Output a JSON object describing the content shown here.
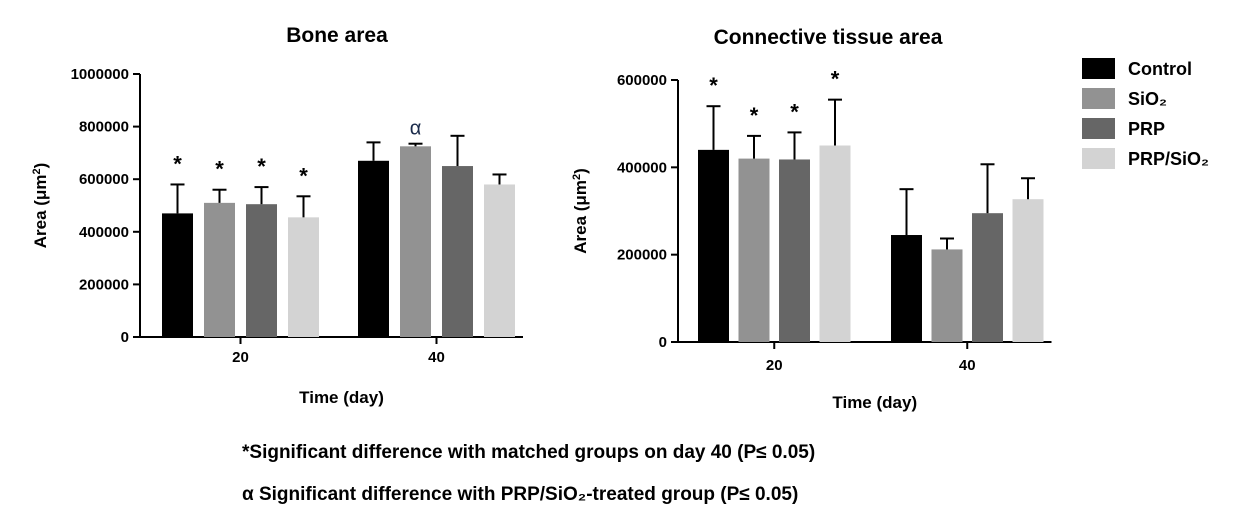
{
  "chart_data": [
    {
      "type": "bar",
      "title": "Bone area",
      "xlabel": "Time (day)",
      "ylabel": "Area (μm²)",
      "ylim": [
        0,
        1000000
      ],
      "yticks": [
        0,
        200000,
        400000,
        600000,
        800000,
        1000000
      ],
      "categories": [
        "20",
        "40"
      ],
      "series": [
        {
          "name": "Control",
          "values": [
            470000,
            670000
          ],
          "errors": [
            110000,
            70000
          ]
        },
        {
          "name": "SiO₂",
          "values": [
            510000,
            725000
          ],
          "errors": [
            50000,
            10000
          ]
        },
        {
          "name": "PRP",
          "values": [
            505000,
            650000
          ],
          "errors": [
            65000,
            115000
          ]
        },
        {
          "name": "PRP/SiO₂",
          "values": [
            455000,
            580000
          ],
          "errors": [
            80000,
            38000
          ]
        }
      ],
      "annotations": [
        {
          "category": "20",
          "series": "Control",
          "symbol": "*"
        },
        {
          "category": "20",
          "series": "SiO₂",
          "symbol": "*"
        },
        {
          "category": "20",
          "series": "PRP",
          "symbol": "*"
        },
        {
          "category": "20",
          "series": "PRP/SiO₂",
          "symbol": "*"
        },
        {
          "category": "40",
          "series": "SiO₂",
          "symbol": "α"
        }
      ]
    },
    {
      "type": "bar",
      "title": "Connective tissue area",
      "xlabel": "Time (day)",
      "ylabel": "Area (μm²)",
      "ylim": [
        0,
        600000
      ],
      "yticks": [
        0,
        200000,
        400000,
        600000
      ],
      "categories": [
        "20",
        "40"
      ],
      "series": [
        {
          "name": "Control",
          "values": [
            440000,
            245000
          ],
          "errors": [
            100000,
            105000
          ]
        },
        {
          "name": "SiO₂",
          "values": [
            420000,
            212000
          ],
          "errors": [
            52000,
            25000
          ]
        },
        {
          "name": "PRP",
          "values": [
            418000,
            295000
          ],
          "errors": [
            62000,
            112000
          ]
        },
        {
          "name": "PRP/SiO₂",
          "values": [
            450000,
            327000
          ],
          "errors": [
            105000,
            48000
          ]
        }
      ],
      "annotations": [
        {
          "category": "20",
          "series": "Control",
          "symbol": "*"
        },
        {
          "category": "20",
          "series": "SiO₂",
          "symbol": "*"
        },
        {
          "category": "20",
          "series": "PRP",
          "symbol": "*"
        },
        {
          "category": "20",
          "series": "PRP/SiO₂",
          "symbol": "*"
        }
      ]
    }
  ],
  "legend": {
    "placement": "right",
    "items": [
      {
        "label": "Control",
        "color": "#000000"
      },
      {
        "label": "SiO₂",
        "color": "#929292"
      },
      {
        "label": "PRP",
        "color": "#666666"
      },
      {
        "label": "PRP/SiO₂",
        "color": "#d3d3d3"
      }
    ]
  },
  "footnotes": {
    "asterisk": "*Significant difference with matched groups on day 40 (P≤ 0.05)",
    "alpha": "α Significant difference with PRP/SiO₂-treated group (P≤ 0.05)"
  }
}
